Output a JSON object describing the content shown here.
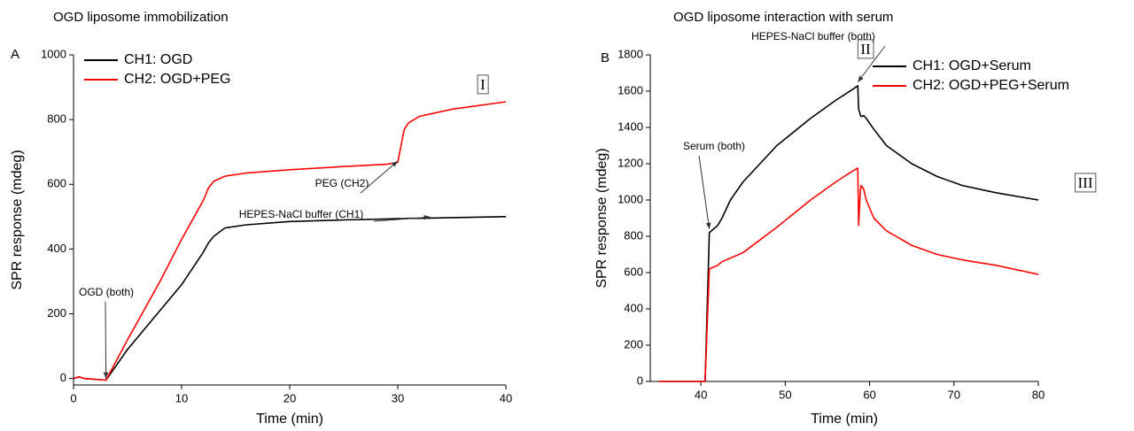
{
  "chart_data": [
    {
      "type": "line",
      "title": "OGD liposome immobilization",
      "panel_label": "A",
      "x_label": "Time (min)",
      "y_label": "SPR response (mdeg)",
      "x": [
        0,
        0.5,
        1,
        3,
        5,
        8,
        10,
        12,
        12.5,
        13,
        14,
        16,
        20,
        25,
        29,
        30,
        30.3,
        30.6,
        31,
        32,
        35,
        40
      ],
      "series": [
        {
          "name": "CH1: OGD",
          "color": "#000000",
          "values": [
            0,
            5,
            0,
            -5,
            90,
            210,
            290,
            390,
            420,
            440,
            465,
            475,
            485,
            490,
            493,
            494,
            494,
            494,
            495,
            495,
            497,
            500
          ]
        },
        {
          "name": "CH2: OGD+PEG",
          "color": "#ff0000",
          "values": [
            0,
            5,
            0,
            -5,
            120,
            300,
            430,
            550,
            590,
            610,
            625,
            635,
            645,
            655,
            662,
            668,
            720,
            770,
            790,
            810,
            832,
            855
          ]
        }
      ],
      "xlim": [
        0,
        40
      ],
      "xticks": [
        0,
        10,
        20,
        30,
        40
      ],
      "ylim": [
        -20,
        1000
      ],
      "yticks": [
        0,
        200,
        400,
        600,
        800,
        1000
      ],
      "legend": "upper left",
      "annotations": [
        "OGD (both)",
        "PEG (CH2)",
        "HEPES-NaCl buffer (CH1)",
        "I"
      ]
    },
    {
      "type": "line",
      "title": "OGD liposome interaction with serum",
      "panel_label": "B",
      "x_label": "Time (min)",
      "y_label": "SPR response (mdeg)",
      "x": [
        35,
        40,
        40.5,
        41,
        42,
        42.5,
        43.5,
        45,
        49,
        53,
        56,
        58,
        58.6,
        58.7,
        58.9,
        59,
        59.3,
        59.6,
        60.5,
        62,
        65,
        68,
        71,
        75,
        80
      ],
      "series": [
        {
          "name": "CH1: OGD+Serum",
          "color": "#000000",
          "values": [
            0,
            0,
            0,
            820,
            860,
            900,
            1000,
            1100,
            1300,
            1450,
            1550,
            1610,
            1630,
            1500,
            1470,
            1460,
            1465,
            1450,
            1390,
            1300,
            1200,
            1130,
            1080,
            1040,
            1000
          ]
        },
        {
          "name": "CH2: OGD+PEG+Serum",
          "color": "#ff0000",
          "values": [
            0,
            0,
            0,
            620,
            640,
            660,
            680,
            710,
            850,
            1000,
            1100,
            1160,
            1175,
            860,
            1050,
            1080,
            1060,
            1000,
            900,
            830,
            750,
            700,
            670,
            640,
            590
          ]
        }
      ],
      "xlim": [
        34,
        80
      ],
      "xticks": [
        40,
        50,
        60,
        70,
        80
      ],
      "ylim": [
        0,
        1800
      ],
      "yticks": [
        0,
        200,
        400,
        600,
        800,
        1000,
        1200,
        1400,
        1600,
        1800
      ],
      "legend": "upper right",
      "annotations": [
        "Serum (both)",
        "HEPES-NaCl buffer (both)",
        "II",
        "III"
      ]
    }
  ]
}
